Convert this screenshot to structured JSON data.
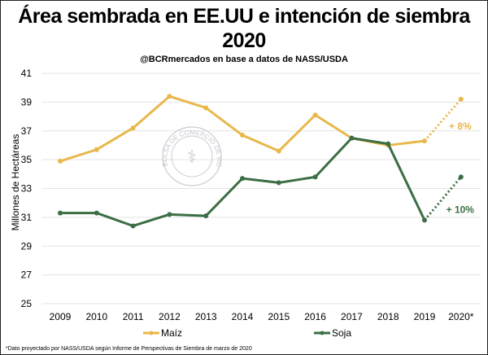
{
  "chart_data": {
    "type": "line",
    "title": "Área sembrada en EE.UU e intención de siembra 2020",
    "subtitle": "@BCRmercados en base a datos de  NASS/USDA",
    "ylabel": "Millones de Hectáreas",
    "xlabel": "",
    "categories": [
      "2009",
      "2010",
      "2011",
      "2012",
      "2013",
      "2014",
      "2015",
      "2016",
      "2017",
      "2018",
      "2019",
      "2020*"
    ],
    "ylim": [
      25,
      41
    ],
    "yticks": [
      "25",
      "27",
      "29",
      "31",
      "33",
      "35",
      "37",
      "39",
      "41"
    ],
    "grid": true,
    "legend_position": "bottom",
    "series": [
      {
        "name": "Maíz",
        "color": "#E8B84B",
        "values": [
          34.9,
          35.7,
          37.2,
          39.4,
          38.6,
          36.7,
          35.6,
          38.1,
          36.5,
          36.0,
          36.3,
          39.2
        ],
        "projected_from_index": 10,
        "annotation": "+ 8%"
      },
      {
        "name": "Soja",
        "color": "#3B6E44",
        "values": [
          31.3,
          31.3,
          30.4,
          31.2,
          31.1,
          33.7,
          33.4,
          33.8,
          36.5,
          36.1,
          30.8,
          33.8
        ],
        "projected_from_index": 10,
        "annotation": "+ 10%"
      }
    ],
    "footnote": "*Dato proyectado por NASS/USDA según Informe de Perspectivas de Siembra de marzo de 2020",
    "watermark": "BOLSA DE COMERCIO DE ROSARIO"
  }
}
